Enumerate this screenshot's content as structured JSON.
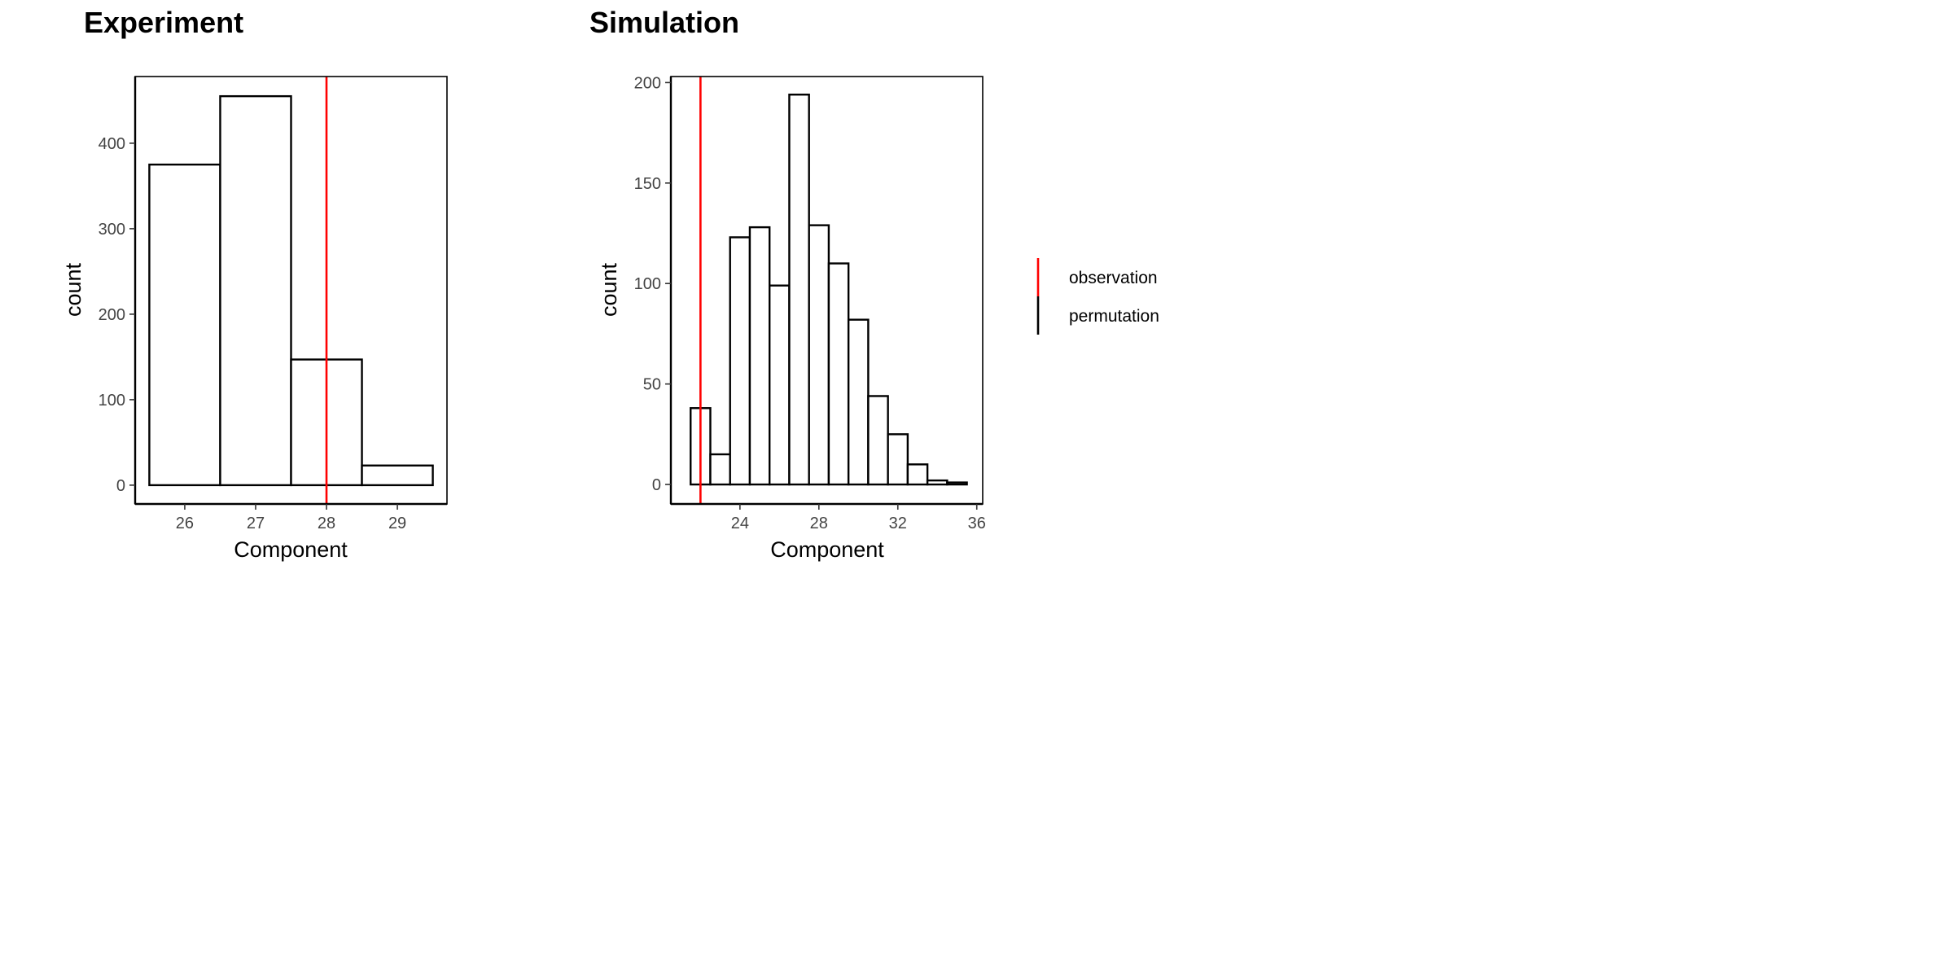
{
  "legend": {
    "items": [
      {
        "label": "observation",
        "color": "#ff0000"
      },
      {
        "label": "permutation",
        "color": "#000000"
      }
    ]
  },
  "chart_data": [
    {
      "type": "bar",
      "title": "Experiment",
      "xlabel": "Component",
      "ylabel": "count",
      "x_ticks": [
        26,
        27,
        28,
        29
      ],
      "y_ticks": [
        0,
        100,
        200,
        300,
        400
      ],
      "xlim": [
        25.3,
        29.7
      ],
      "ylim": [
        -22,
        478
      ],
      "bin_width": 1,
      "bins": [
        {
          "x": 26,
          "count": 375
        },
        {
          "x": 27,
          "count": 455
        },
        {
          "x": 28,
          "count": 147
        },
        {
          "x": 29,
          "count": 23
        }
      ],
      "observation": 28,
      "grid": false
    },
    {
      "type": "bar",
      "title": "Simulation",
      "xlabel": "Component",
      "ylabel": "count",
      "x_ticks": [
        24,
        28,
        32,
        36
      ],
      "y_ticks": [
        0,
        50,
        100,
        150,
        200
      ],
      "xlim": [
        20.5,
        36.3
      ],
      "ylim": [
        -9.7,
        203
      ],
      "bin_width": 1,
      "bins": [
        {
          "x": 22,
          "count": 38
        },
        {
          "x": 23,
          "count": 15
        },
        {
          "x": 24,
          "count": 123
        },
        {
          "x": 25,
          "count": 128
        },
        {
          "x": 26,
          "count": 99
        },
        {
          "x": 27,
          "count": 194
        },
        {
          "x": 28,
          "count": 129
        },
        {
          "x": 29,
          "count": 110
        },
        {
          "x": 30,
          "count": 82
        },
        {
          "x": 31,
          "count": 44
        },
        {
          "x": 32,
          "count": 25
        },
        {
          "x": 33,
          "count": 10
        },
        {
          "x": 34,
          "count": 2
        },
        {
          "x": 35,
          "count": 1
        }
      ],
      "observation": 22,
      "grid": false
    }
  ]
}
